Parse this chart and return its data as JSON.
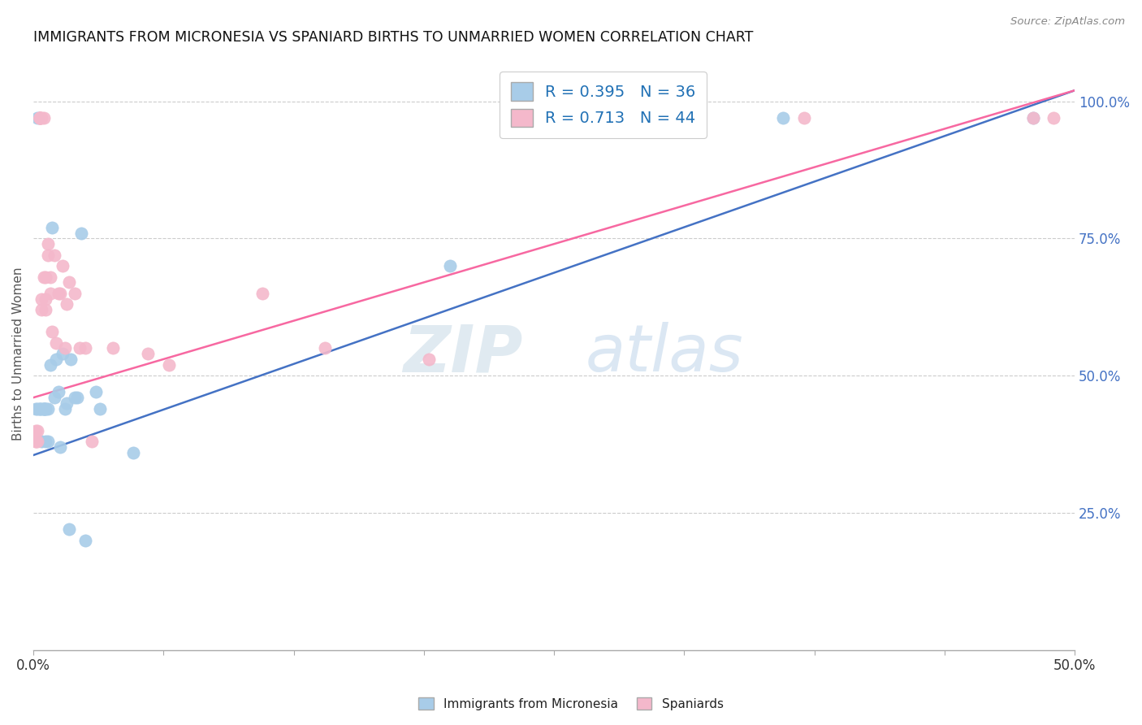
{
  "title": "IMMIGRANTS FROM MICRONESIA VS SPANIARD BIRTHS TO UNMARRIED WOMEN CORRELATION CHART",
  "source": "Source: ZipAtlas.com",
  "ylabel": "Births to Unmarried Women",
  "ylabel_right_labels": [
    "25.0%",
    "50.0%",
    "75.0%",
    "100.0%"
  ],
  "ylabel_right_values": [
    0.25,
    0.5,
    0.75,
    1.0
  ],
  "legend_blue_r": "0.395",
  "legend_blue_n": "36",
  "legend_pink_r": "0.713",
  "legend_pink_n": "44",
  "legend_label_blue": "Immigrants from Micronesia",
  "legend_label_pink": "Spaniards",
  "blue_color": "#a8cce8",
  "pink_color": "#f4b8cb",
  "blue_line_color": "#4472c4",
  "pink_line_color": "#f768a1",
  "watermark_zip": "ZIP",
  "watermark_atlas": "atlas",
  "xlim": [
    0.0,
    0.5
  ],
  "ylim": [
    0.0,
    1.08
  ],
  "blue_points_x": [
    0.001,
    0.002,
    0.002,
    0.003,
    0.003,
    0.004,
    0.004,
    0.005,
    0.005,
    0.005,
    0.006,
    0.006,
    0.006,
    0.007,
    0.007,
    0.008,
    0.009,
    0.01,
    0.011,
    0.012,
    0.013,
    0.014,
    0.015,
    0.016,
    0.017,
    0.018,
    0.02,
    0.021,
    0.023,
    0.025,
    0.03,
    0.032,
    0.048,
    0.2,
    0.36,
    0.48
  ],
  "blue_points_y": [
    0.44,
    0.97,
    0.44,
    0.44,
    0.44,
    0.44,
    0.38,
    0.44,
    0.44,
    0.44,
    0.44,
    0.44,
    0.38,
    0.44,
    0.38,
    0.52,
    0.77,
    0.46,
    0.53,
    0.47,
    0.37,
    0.54,
    0.44,
    0.45,
    0.22,
    0.53,
    0.46,
    0.46,
    0.76,
    0.2,
    0.47,
    0.44,
    0.36,
    0.7,
    0.97,
    0.97
  ],
  "pink_points_x": [
    0.001,
    0.001,
    0.001,
    0.002,
    0.002,
    0.003,
    0.003,
    0.003,
    0.003,
    0.003,
    0.004,
    0.004,
    0.004,
    0.005,
    0.005,
    0.006,
    0.006,
    0.006,
    0.007,
    0.007,
    0.008,
    0.008,
    0.009,
    0.01,
    0.011,
    0.012,
    0.013,
    0.014,
    0.015,
    0.016,
    0.017,
    0.02,
    0.022,
    0.025,
    0.028,
    0.038,
    0.055,
    0.065,
    0.11,
    0.14,
    0.19,
    0.37,
    0.48,
    0.49
  ],
  "pink_points_y": [
    0.4,
    0.38,
    0.38,
    0.4,
    0.38,
    0.97,
    0.97,
    0.97,
    0.97,
    0.97,
    0.97,
    0.64,
    0.62,
    0.97,
    0.68,
    0.62,
    0.64,
    0.68,
    0.72,
    0.74,
    0.65,
    0.68,
    0.58,
    0.72,
    0.56,
    0.65,
    0.65,
    0.7,
    0.55,
    0.63,
    0.67,
    0.65,
    0.55,
    0.55,
    0.38,
    0.55,
    0.54,
    0.52,
    0.65,
    0.55,
    0.53,
    0.97,
    0.97,
    0.97
  ]
}
